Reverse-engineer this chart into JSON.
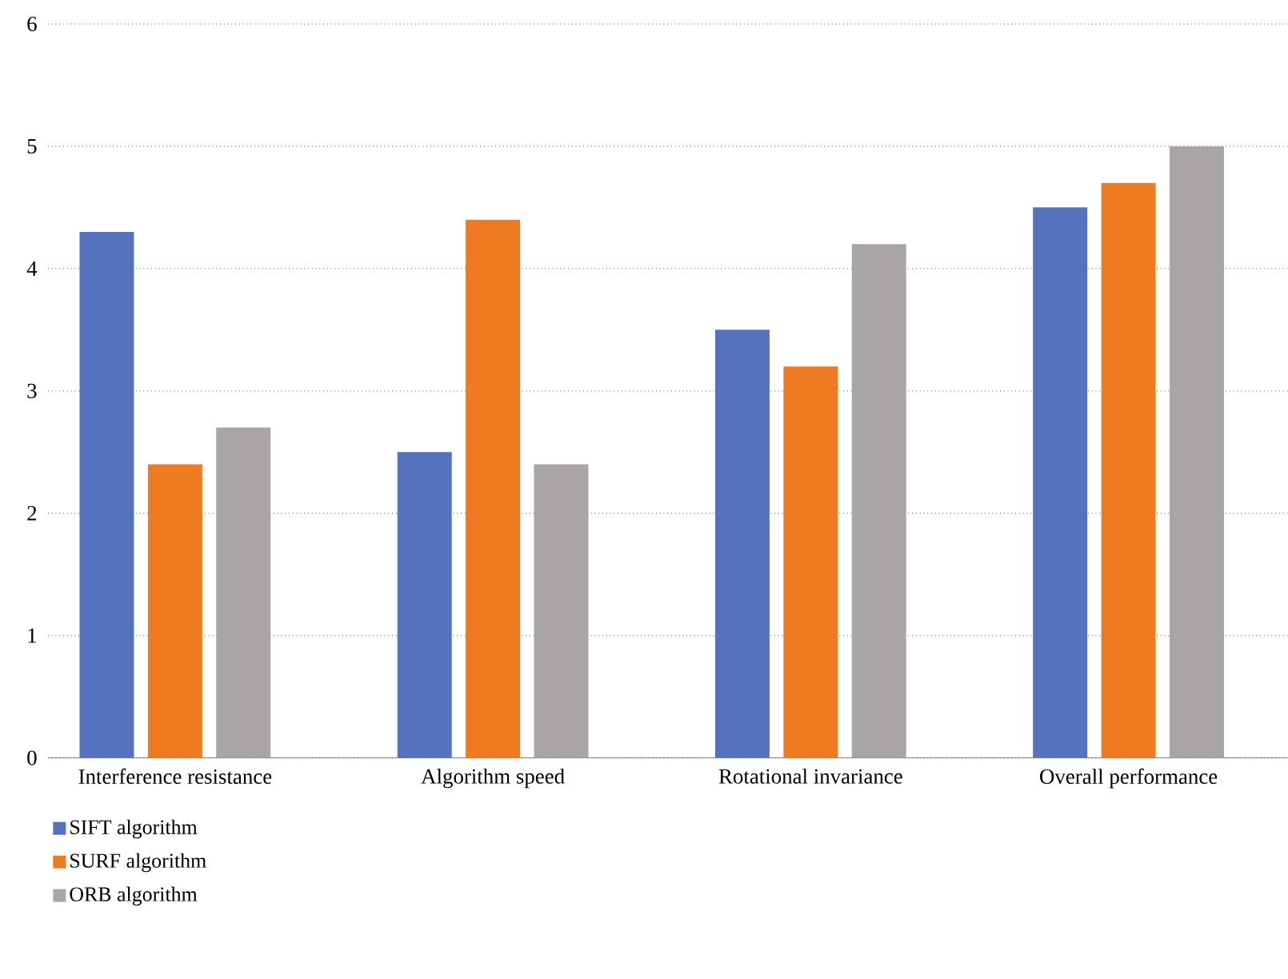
{
  "chart_data": {
    "type": "bar",
    "categories": [
      "Interference resistance",
      "Algorithm speed",
      "Rotational invariance",
      "Overall performance"
    ],
    "series": [
      {
        "name": "SIFT algorithm",
        "color": "#5472be",
        "values": [
          4.3,
          2.5,
          3.5,
          4.5
        ]
      },
      {
        "name": "SURF algorithm",
        "color": "#ee7b22",
        "values": [
          2.4,
          4.4,
          3.2,
          4.7
        ]
      },
      {
        "name": "ORB algorithm",
        "color": "#a9a5a4",
        "values": [
          2.7,
          2.4,
          4.2,
          5.0
        ]
      }
    ],
    "ylim": [
      0,
      6
    ],
    "yticks": [
      0,
      1,
      2,
      3,
      4,
      5,
      6
    ],
    "grid": "y",
    "legend": "bottom left"
  }
}
